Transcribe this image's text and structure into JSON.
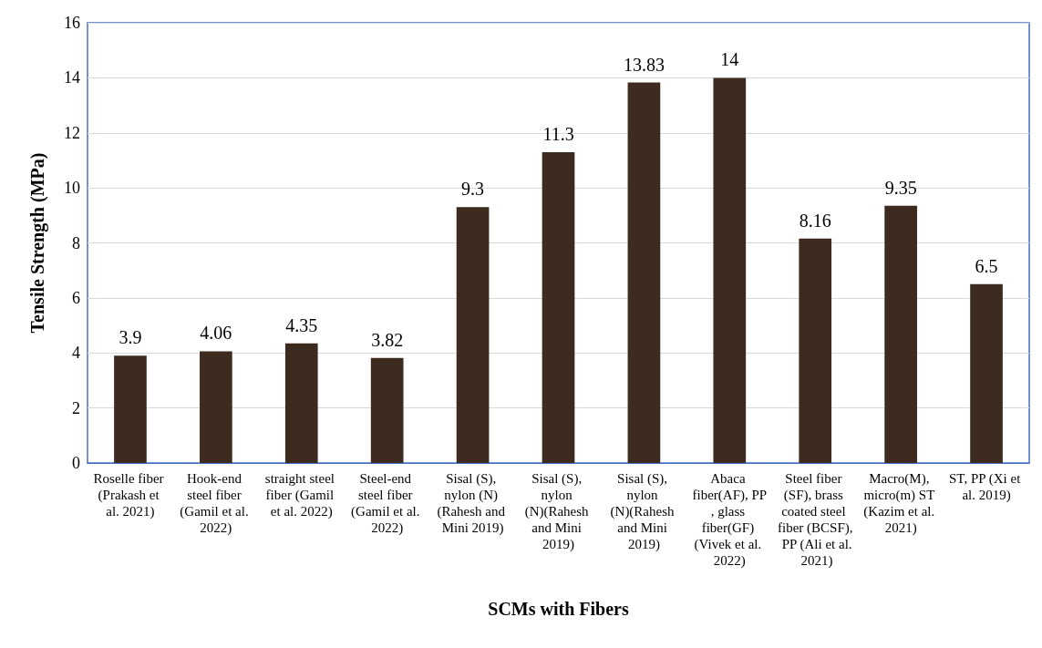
{
  "chart_data": {
    "type": "bar",
    "xlabel": "SCMs with Fibers",
    "ylabel": "Tensile Strength (MPa)",
    "categories": [
      "Roselle fiber (Prakash et al. 2021)",
      "Hook-end steel fiber (Gamil et al. 2022)",
      "straight steel fiber (Gamil et al. 2022)",
      "Steel-end steel fiber (Gamil et al. 2022)",
      "Sisal (S), nylon (N) (Rahesh and Mini 2019)",
      "Sisal (S), nylon (N)(Rahesh and Mini 2019)",
      "Sisal (S), nylon (N)(Rahesh and Mini 2019)",
      "Abaca fiber(AF), PP, glass fiber(GF) (Vivek et al. 2022)",
      "Steel fiber (SF), brass coated steel fiber (BCSF), PP (Ali et al. 2021)",
      "Macro(M), micro(m) ST (Kazim et al. 2021)",
      "ST, PP (Xi et al. 2019)"
    ],
    "values": [
      3.9,
      4.06,
      4.35,
      3.82,
      9.3,
      11.3,
      13.83,
      14,
      8.16,
      9.35,
      6.5
    ],
    "color": "#3e2b1f",
    "ylim": [
      0,
      16
    ],
    "yticks": [
      0,
      2,
      4,
      6,
      8,
      10,
      12,
      14,
      16
    ],
    "grid": "y",
    "data_labels": true
  }
}
